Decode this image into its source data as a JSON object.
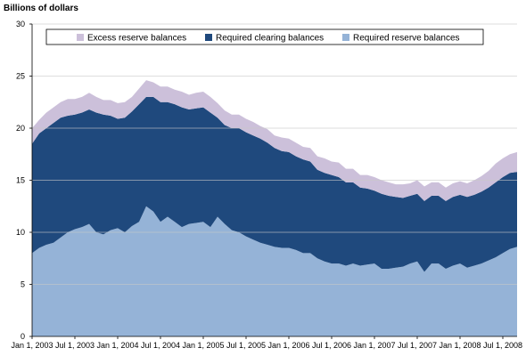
{
  "chart_data": {
    "type": "area",
    "stacked": true,
    "ylabel": "Billions of dollars",
    "ylim": [
      0,
      30
    ],
    "yticks": [
      "0",
      "5",
      "10",
      "15",
      "20",
      "25",
      "30"
    ],
    "xticks": [
      "Jan 1, 2003",
      "Jul 1, 2003",
      "Jan 1, 2004",
      "Jul 1, 2004",
      "Jan 1, 2005",
      "Jul 1, 2005",
      "Jan 1, 2006",
      "Jul 1, 2006",
      "Jan 1, 2007",
      "Jul 1, 2007",
      "Jan 1, 2008",
      "Jul 1, 2008"
    ],
    "grid": "horizontal",
    "legend_position": "top",
    "x": [
      "2003-01",
      "2003-02",
      "2003-03",
      "2003-04",
      "2003-05",
      "2003-06",
      "2003-07",
      "2003-08",
      "2003-09",
      "2003-10",
      "2003-11",
      "2003-12",
      "2004-01",
      "2004-02",
      "2004-03",
      "2004-04",
      "2004-05",
      "2004-06",
      "2004-07",
      "2004-08",
      "2004-09",
      "2004-10",
      "2004-11",
      "2004-12",
      "2005-01",
      "2005-02",
      "2005-03",
      "2005-04",
      "2005-05",
      "2005-06",
      "2005-07",
      "2005-08",
      "2005-09",
      "2005-10",
      "2005-11",
      "2005-12",
      "2006-01",
      "2006-02",
      "2006-03",
      "2006-04",
      "2006-05",
      "2006-06",
      "2006-07",
      "2006-08",
      "2006-09",
      "2006-10",
      "2006-11",
      "2006-12",
      "2007-01",
      "2007-02",
      "2007-03",
      "2007-04",
      "2007-05",
      "2007-06",
      "2007-07",
      "2007-08",
      "2007-09",
      "2007-10",
      "2007-11",
      "2007-12",
      "2008-01",
      "2008-02",
      "2008-03",
      "2008-04",
      "2008-05",
      "2008-06",
      "2008-07",
      "2008-08",
      "2008-09"
    ],
    "series": [
      {
        "name": "Required reserve balances",
        "color": "#95b3d7",
        "values": [
          8.0,
          8.5,
          8.8,
          9.0,
          9.5,
          10.0,
          10.3,
          10.5,
          10.8,
          10.0,
          9.8,
          10.2,
          10.4,
          10.0,
          10.6,
          11.0,
          12.5,
          12.0,
          11.0,
          11.5,
          11.0,
          10.5,
          10.8,
          10.9,
          11.0,
          10.5,
          11.5,
          10.8,
          10.2,
          10.0,
          9.6,
          9.3,
          9.0,
          8.8,
          8.6,
          8.5,
          8.5,
          8.3,
          8.0,
          8.0,
          7.5,
          7.2,
          7.0,
          7.0,
          6.8,
          7.0,
          6.8,
          6.9,
          7.0,
          6.5,
          6.5,
          6.6,
          6.7,
          7.0,
          7.2,
          6.2,
          7.0,
          7.0,
          6.5,
          6.8,
          7.0,
          6.6,
          6.8,
          7.0,
          7.3,
          7.6,
          8.0,
          8.4,
          8.6
        ]
      },
      {
        "name": "Required clearing balances",
        "color": "#1f497d",
        "values": [
          10.5,
          11.0,
          11.2,
          11.5,
          11.5,
          11.2,
          11.0,
          11.0,
          11.0,
          11.5,
          11.5,
          11.0,
          10.5,
          11.0,
          11.0,
          11.3,
          10.5,
          11.0,
          11.5,
          11.0,
          11.3,
          11.5,
          11.0,
          11.0,
          11.0,
          11.0,
          9.5,
          9.5,
          9.8,
          10.0,
          10.0,
          10.0,
          10.0,
          9.8,
          9.5,
          9.3,
          9.2,
          9.0,
          9.0,
          8.8,
          8.5,
          8.5,
          8.5,
          8.3,
          8.0,
          7.8,
          7.5,
          7.3,
          7.0,
          7.2,
          7.0,
          6.8,
          6.6,
          6.5,
          6.5,
          6.8,
          6.5,
          6.5,
          6.5,
          6.6,
          6.6,
          6.8,
          6.8,
          6.9,
          7.0,
          7.2,
          7.3,
          7.3,
          7.2
        ]
      },
      {
        "name": "Excess reserve balances",
        "color": "#ccc0da",
        "values": [
          1.5,
          1.3,
          1.5,
          1.5,
          1.5,
          1.6,
          1.5,
          1.5,
          1.6,
          1.5,
          1.4,
          1.5,
          1.5,
          1.5,
          1.4,
          1.5,
          1.6,
          1.4,
          1.5,
          1.5,
          1.4,
          1.5,
          1.4,
          1.5,
          1.5,
          1.5,
          1.4,
          1.4,
          1.3,
          1.3,
          1.3,
          1.3,
          1.2,
          1.3,
          1.2,
          1.3,
          1.3,
          1.3,
          1.2,
          1.3,
          1.3,
          1.4,
          1.3,
          1.4,
          1.3,
          1.3,
          1.2,
          1.3,
          1.3,
          1.3,
          1.3,
          1.2,
          1.3,
          1.2,
          1.3,
          1.4,
          1.3,
          1.3,
          1.3,
          1.3,
          1.3,
          1.3,
          1.4,
          1.5,
          1.6,
          1.8,
          1.8,
          1.8,
          1.9
        ]
      }
    ],
    "legend_order": [
      "Excess reserve balances",
      "Required clearing balances",
      "Required reserve balances"
    ]
  }
}
